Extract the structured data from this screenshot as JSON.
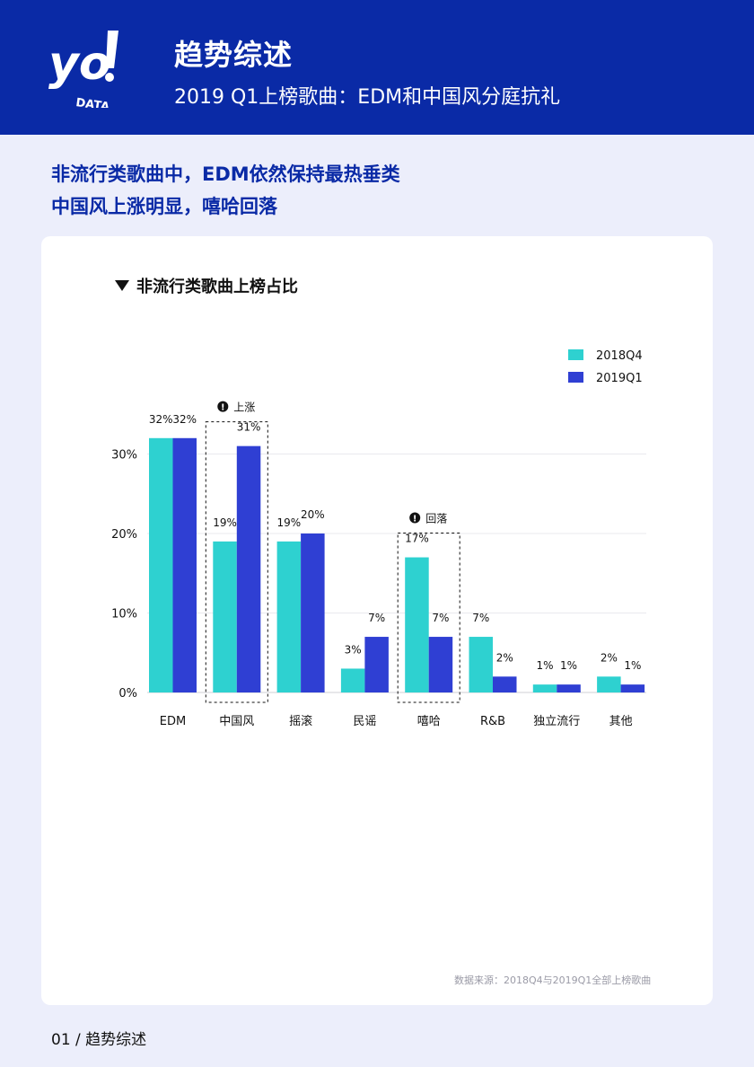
{
  "header": {
    "logo_text": "yo! DATA",
    "title": "趋势综述",
    "subtitle": "2019 Q1上榜歌曲：EDM和中国风分庭抗礼"
  },
  "summary": {
    "line1": "非流行类歌曲中，EDM依然保持最热垂类",
    "line2": "中国风上涨明显，嘻哈回落"
  },
  "chart_title": "非流行类歌曲上榜占比",
  "source_note": "数据来源：2018Q4与2019Q1全部上榜歌曲",
  "footer": {
    "page": "01 / 趋势综述"
  },
  "colors": {
    "header_bg": "#0a2aa6",
    "series_2018Q4": "#2ed1d0",
    "series_2019Q1": "#2f3fd3"
  },
  "chart_data": {
    "type": "bar",
    "title": "非流行类歌曲上榜占比",
    "xlabel": "",
    "ylabel": "",
    "categories": [
      "EDM",
      "中国风",
      "摇滚",
      "民谣",
      "嘻哈",
      "R&B",
      "独立流行",
      "其他"
    ],
    "series": [
      {
        "name": "2018Q4",
        "values": [
          32,
          19,
          19,
          3,
          17,
          7,
          1,
          2
        ],
        "labels": [
          "32%",
          "19%",
          "19%",
          "3%",
          "17%",
          "7%",
          "1%",
          "2%"
        ]
      },
      {
        "name": "2019Q1",
        "values": [
          32,
          31,
          20,
          7,
          7,
          2,
          1,
          1
        ],
        "labels": [
          "32%",
          "31%",
          "20%",
          "7%",
          "7%",
          "2%",
          "1%",
          "1%"
        ]
      }
    ],
    "ylim": [
      0,
      35
    ],
    "yticks": [
      0,
      10,
      20,
      30
    ],
    "ytick_labels": [
      "0%",
      "10%",
      "20%",
      "30%"
    ],
    "grid": true,
    "legend": "top-right",
    "annotations": [
      {
        "category": "中国风",
        "text": "上涨"
      },
      {
        "category": "嘻哈",
        "text": "回落"
      }
    ]
  }
}
